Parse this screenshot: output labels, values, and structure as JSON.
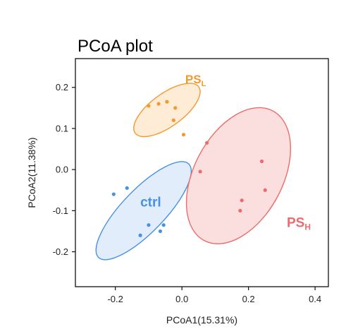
{
  "chart_data": {
    "type": "scatter",
    "title": "PCoA plot",
    "xlabel": "PCoA1(15.31%)",
    "ylabel": "PCoA2(11.38%)",
    "xlim": [
      -0.32,
      0.44
    ],
    "ylim": [
      -0.285,
      0.27
    ],
    "xticks": [
      -0.2,
      0.0,
      0.2,
      0.4
    ],
    "xtick_labels": [
      "-0.2",
      "0.0",
      "0.2",
      "0.4"
    ],
    "yticks": [
      -0.2,
      -0.1,
      0.0,
      0.1,
      0.2
    ],
    "ytick_labels": [
      "-0.2",
      "-0.1",
      "0.0",
      "0.1",
      "0.2"
    ],
    "grid": false,
    "series": [
      {
        "name": "ctrl",
        "label_main": "ctrl",
        "label_sub": "",
        "color": "#4a90e2",
        "fill": "#d6e6fa",
        "points": [
          {
            "x": -0.205,
            "y": -0.06
          },
          {
            "x": -0.165,
            "y": -0.045
          },
          {
            "x": -0.1,
            "y": -0.135
          },
          {
            "x": -0.125,
            "y": -0.16
          },
          {
            "x": -0.065,
            "y": -0.15
          },
          {
            "x": -0.055,
            "y": -0.135
          }
        ],
        "ellipse": {
          "cx": -0.115,
          "cy": -0.1,
          "rx": 0.195,
          "ry": 0.052,
          "angle": -46
        }
      },
      {
        "name": "PS_L",
        "label_main": "PS",
        "label_sub": "L",
        "color": "#f29a2e",
        "fill": "#fde4c8",
        "points": [
          {
            "x": -0.1,
            "y": 0.155
          },
          {
            "x": -0.07,
            "y": 0.16
          },
          {
            "x": -0.045,
            "y": 0.165
          },
          {
            "x": -0.02,
            "y": 0.15
          },
          {
            "x": -0.025,
            "y": 0.12
          },
          {
            "x": 0.005,
            "y": 0.085
          }
        ],
        "ellipse": {
          "cx": -0.045,
          "cy": 0.145,
          "rx": 0.118,
          "ry": 0.04,
          "angle": -36
        }
      },
      {
        "name": "PS_H",
        "label_main": "PS",
        "label_sub": "H",
        "color": "#ee6b6b",
        "fill": "#fad1d1",
        "points": [
          {
            "x": 0.075,
            "y": 0.065
          },
          {
            "x": 0.055,
            "y": -0.005
          },
          {
            "x": 0.24,
            "y": 0.02
          },
          {
            "x": 0.25,
            "y": -0.05
          },
          {
            "x": 0.18,
            "y": -0.075
          },
          {
            "x": 0.175,
            "y": -0.1
          }
        ],
        "ellipse": {
          "cx": 0.17,
          "cy": -0.015,
          "rx": 0.22,
          "ry": 0.108,
          "angle": -62
        }
      }
    ],
    "group_labels": [
      {
        "series": "ctrl",
        "x": -0.125,
        "y": -0.09,
        "size": 19
      },
      {
        "series": "PS_L",
        "x": 0.01,
        "y": 0.21,
        "size": 17
      },
      {
        "series": "PS_H",
        "x": 0.315,
        "y": -0.14,
        "size": 19
      }
    ]
  }
}
